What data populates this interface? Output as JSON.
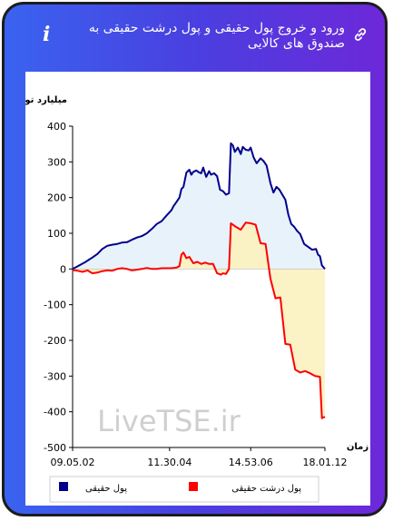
{
  "header": {
    "title": "ورود و خروج پول حقیقی و پول درشت حقیقی به صندوق های کالایی",
    "info_icon": "info-icon",
    "link_icon": "link-icon"
  },
  "watermark": "LiveTSE.ir",
  "chart_data": {
    "type": "line",
    "ylabel": "میلیارد تومان",
    "xlabel": "زمان",
    "ylim": [
      -500,
      400
    ],
    "yticks": [
      -500,
      -400,
      -300,
      -200,
      -100,
      0,
      100,
      200,
      300,
      400
    ],
    "xticks": [
      "09.05.02",
      "11.30.04",
      "14.53.06",
      "18.01.12"
    ],
    "grid": false,
    "legend_position": "bottom",
    "colors": {
      "real": "#00008b",
      "big_real": "#ff0000",
      "real_fill": "#e6f1fa",
      "big_fill": "#fbf1c2"
    },
    "series": [
      {
        "name": "پول حقیقی",
        "color": "#00008b",
        "x": [
          0,
          4,
          8,
          12,
          16,
          20,
          25,
          30,
          35,
          40,
          45,
          50,
          55,
          60,
          65,
          70,
          75,
          80,
          85,
          90,
          95,
          100,
          102,
          105,
          108,
          110,
          112,
          115,
          118,
          120,
          122,
          125,
          128,
          130,
          132,
          135,
          138,
          140,
          143,
          146,
          149,
          152,
          155,
          158,
          160,
          162,
          164,
          167,
          170,
          172,
          175,
          178,
          180,
          183,
          186,
          190,
          193,
          196,
          200,
          203,
          206,
          209,
          212,
          215,
          218,
          221,
          224,
          227,
          230,
          234,
          238,
          242,
          246,
          248,
          250,
          252,
          255
        ],
        "y": [
          0,
          6,
          12,
          18,
          25,
          32,
          42,
          56,
          65,
          68,
          70,
          74,
          75,
          82,
          88,
          92,
          100,
          112,
          126,
          134,
          150,
          165,
          176,
          188,
          200,
          224,
          230,
          270,
          278,
          264,
          272,
          276,
          270,
          268,
          284,
          258,
          274,
          264,
          268,
          260,
          222,
          218,
          208,
          212,
          352,
          346,
          328,
          340,
          322,
          342,
          334,
          332,
          340,
          312,
          296,
          310,
          302,
          290,
          240,
          214,
          230,
          222,
          208,
          194,
          152,
          126,
          118,
          106,
          98,
          70,
          62,
          54,
          56,
          40,
          36,
          10,
          0
        ]
      },
      {
        "name": "پول درشت حقیقی",
        "color": "#ff0000",
        "x": [
          0,
          5,
          10,
          15,
          20,
          25,
          30,
          35,
          40,
          45,
          50,
          55,
          60,
          65,
          70,
          75,
          80,
          85,
          90,
          95,
          100,
          105,
          108,
          110,
          112,
          115,
          118,
          122,
          126,
          130,
          134,
          138,
          142,
          146,
          150,
          152,
          155,
          158,
          160,
          162,
          165,
          170,
          175,
          180,
          185,
          190,
          195,
          200,
          205,
          210,
          215,
          220,
          225,
          230,
          235,
          240,
          245,
          250,
          252,
          255
        ],
        "y": [
          -3,
          -5,
          -8,
          -4,
          -12,
          -10,
          -6,
          -4,
          -5,
          0,
          2,
          0,
          -4,
          -2,
          0,
          3,
          0,
          0,
          2,
          2,
          2,
          4,
          8,
          40,
          46,
          30,
          34,
          16,
          20,
          14,
          18,
          14,
          14,
          -12,
          -16,
          -12,
          -14,
          0,
          128,
          124,
          118,
          110,
          130,
          128,
          124,
          72,
          70,
          -28,
          -82,
          -80,
          -210,
          -212,
          -282,
          -290,
          -286,
          -292,
          -300,
          -302,
          -418,
          -414
        ]
      }
    ]
  }
}
